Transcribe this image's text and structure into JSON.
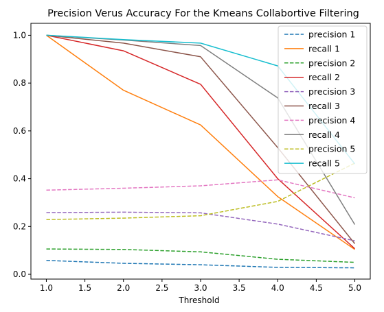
{
  "chart_data": {
    "type": "line",
    "title": "Precision Verus Accuracy For the Kmeans Collabortive Filtering",
    "xlabel": "Threshold",
    "ylabel": "",
    "x": [
      1,
      2,
      3,
      4,
      5
    ],
    "xlim": [
      0.8,
      5.2
    ],
    "ylim": [
      -0.02,
      1.05
    ],
    "xticks": [
      "1.0",
      "1.5",
      "2.0",
      "2.5",
      "3.0",
      "3.5",
      "4.0",
      "4.5",
      "5.0"
    ],
    "yticks": [
      "0.0",
      "0.2",
      "0.4",
      "0.6",
      "0.8",
      "1.0"
    ],
    "grid": false,
    "legend_position": "upper-right",
    "series": [
      {
        "name": "precision 1",
        "values": [
          0.058,
          0.046,
          0.04,
          0.029,
          0.027
        ],
        "color": "#1f77b4",
        "dashed": true
      },
      {
        "name": "recall 1",
        "values": [
          1.0,
          0.77,
          0.625,
          0.325,
          0.104
        ],
        "color": "#ff7f0e",
        "dashed": false
      },
      {
        "name": "precision 2",
        "values": [
          0.106,
          0.104,
          0.094,
          0.063,
          0.05
        ],
        "color": "#2ca02c",
        "dashed": true
      },
      {
        "name": "recall 2",
        "values": [
          1.0,
          0.935,
          0.795,
          0.4,
          0.107
        ],
        "color": "#d62728",
        "dashed": false
      },
      {
        "name": "precision 3",
        "values": [
          0.258,
          0.26,
          0.257,
          0.21,
          0.14
        ],
        "color": "#9467bd",
        "dashed": true
      },
      {
        "name": "recall 3",
        "values": [
          1.0,
          0.967,
          0.91,
          0.53,
          0.128
        ],
        "color": "#8c564b",
        "dashed": false
      },
      {
        "name": "precision 4",
        "values": [
          0.352,
          0.36,
          0.37,
          0.395,
          0.32
        ],
        "color": "#e377c2",
        "dashed": true
      },
      {
        "name": "recall 4",
        "values": [
          1.0,
          0.98,
          0.957,
          0.738,
          0.208
        ],
        "color": "#7f7f7f",
        "dashed": false
      },
      {
        "name": "precision 5",
        "values": [
          0.229,
          0.235,
          0.245,
          0.305,
          0.465
        ],
        "color": "#bcbd22",
        "dashed": true
      },
      {
        "name": "recall 5",
        "values": [
          1.0,
          0.982,
          0.967,
          0.872,
          0.462
        ],
        "color": "#17becf",
        "dashed": false
      }
    ]
  }
}
